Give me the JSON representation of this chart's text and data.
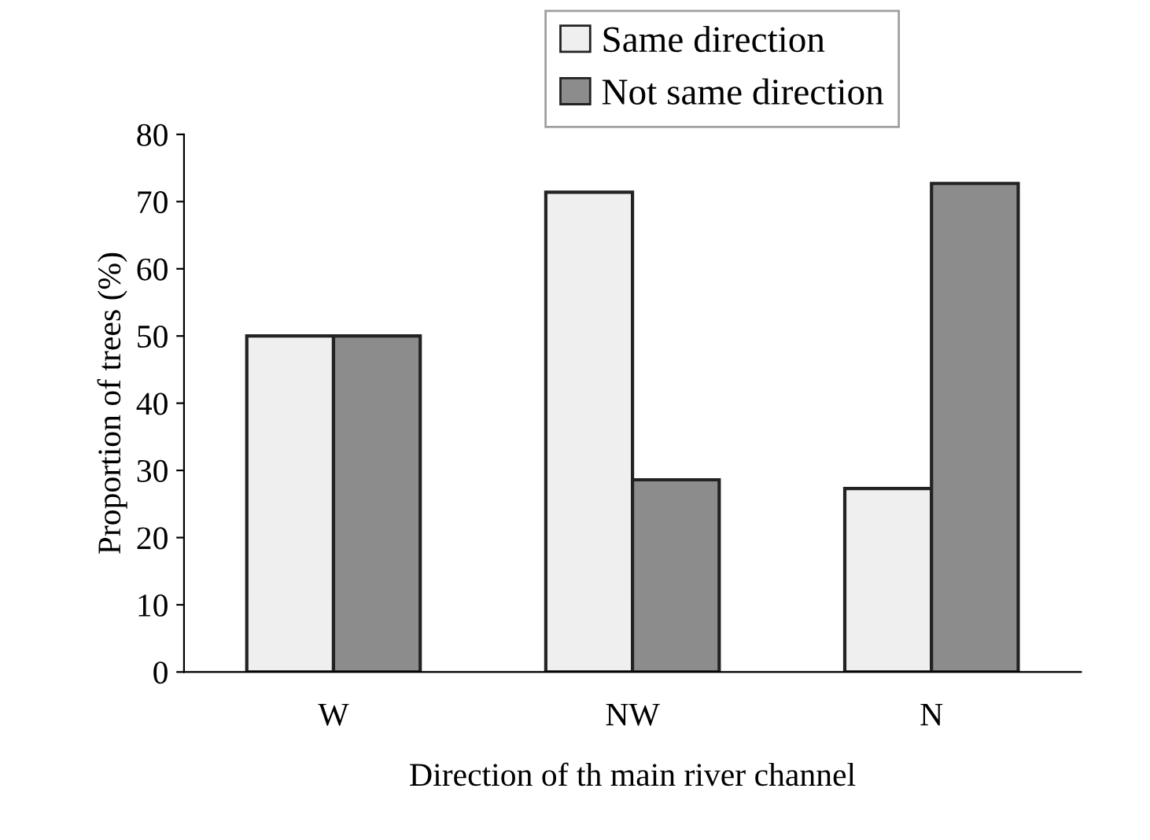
{
  "chart_data": {
    "type": "bar",
    "xlabel": "Direction of th main river channel",
    "ylabel": "Proportion of trees (%)",
    "categories": [
      "W",
      "NW",
      "N"
    ],
    "series": [
      {
        "name": "Same direction",
        "color": "#efefef",
        "values": [
          50,
          71.4,
          27.3
        ]
      },
      {
        "name": "Not same direction",
        "color": "#8c8c8c",
        "values": [
          50,
          28.6,
          72.7
        ]
      }
    ],
    "ylim": [
      0,
      80
    ],
    "yticks": [
      0,
      10,
      20,
      30,
      40,
      50,
      60,
      70,
      80
    ],
    "grid": false,
    "legend": "top"
  }
}
